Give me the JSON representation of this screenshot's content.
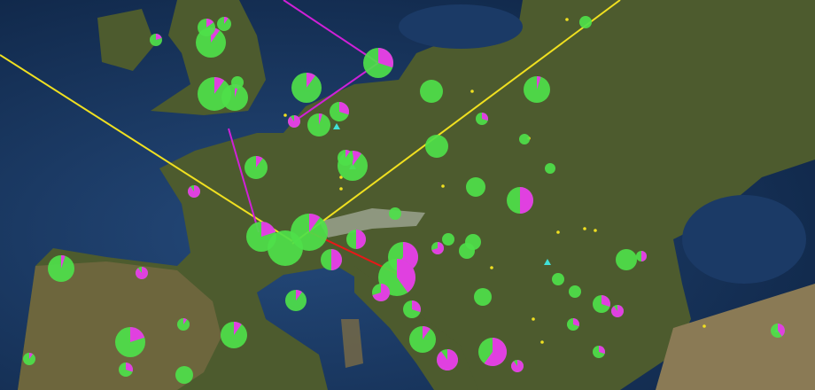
{
  "map": {
    "colors": {
      "ocean": "#1b3a66",
      "deep_ocean": "#0e2444",
      "land": "#4d5b2e",
      "land_dry": "#7a6b45",
      "pie_primary": "#4ee04a",
      "pie_secondary": "#e040e0",
      "route_yellow": "#f0e020",
      "route_magenta": "#d020d8",
      "route_red": "#e81818",
      "marker_cyan": "#40e0d8",
      "dot_yellow": "#f0e020"
    },
    "pie_secondary_fractions": [
      0.3,
      0.1,
      0,
      0.05,
      0.1,
      0.15,
      0.1,
      0.2,
      0.1,
      0.05,
      0,
      0.3,
      0.05,
      0.9,
      0.3,
      0,
      0,
      0,
      0.1,
      0.1,
      0.1,
      0.9,
      0,
      0.5,
      0,
      0.1,
      0,
      0.2,
      0.5,
      0.5,
      0.6,
      0.4,
      0.7,
      0,
      0,
      0,
      0,
      0.5,
      0.05,
      0.9,
      0,
      0,
      0,
      0.1,
      0.7,
      0.3,
      0.3,
      0.9,
      0.3,
      0.4,
      0.2,
      0.1,
      0.1,
      0.1,
      0.9,
      0.6,
      0.9,
      0.3,
      0,
      0.3,
      0.1,
      0
    ]
  }
}
